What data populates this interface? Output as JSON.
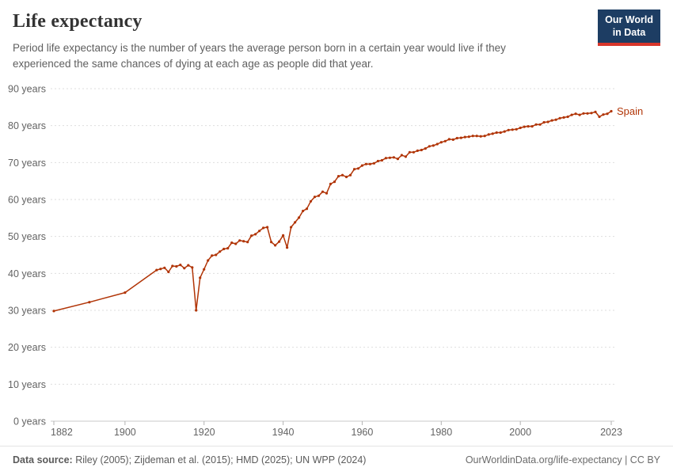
{
  "header": {
    "title": "Life expectancy",
    "subtitle": "Period life expectancy is the number of years the average person born in a certain year would live if they experienced the same chances of dying at each age as people did that year.",
    "logo": {
      "line1": "Our World",
      "line2": "in Data",
      "bg_color": "#1d3d63",
      "accent_color": "#d8352a"
    }
  },
  "chart_data": {
    "type": "line",
    "title": "Life expectancy",
    "xlabel": "",
    "ylabel": "",
    "xlim": [
      1882,
      2023
    ],
    "ylim": [
      0,
      90
    ],
    "xticks": [
      1882,
      1900,
      1920,
      1940,
      1960,
      1980,
      2000,
      2023
    ],
    "yticks": [
      0,
      10,
      20,
      30,
      40,
      50,
      60,
      70,
      80,
      90
    ],
    "ytick_suffix": " years",
    "grid": "horizontal-dashed",
    "legend_position": "end-of-line",
    "series": [
      {
        "name": "Spain",
        "color": "#b13507",
        "points": [
          [
            1882,
            29.8
          ],
          [
            1891,
            32.2
          ],
          [
            1900,
            34.8
          ],
          [
            1908,
            40.9
          ],
          [
            1909,
            41.2
          ],
          [
            1910,
            41.5
          ],
          [
            1911,
            40.4
          ],
          [
            1912,
            42.0
          ],
          [
            1913,
            41.9
          ],
          [
            1914,
            42.3
          ],
          [
            1915,
            41.4
          ],
          [
            1916,
            42.2
          ],
          [
            1917,
            41.6
          ],
          [
            1918,
            30.0
          ],
          [
            1919,
            38.8
          ],
          [
            1920,
            41.1
          ],
          [
            1921,
            43.5
          ],
          [
            1922,
            44.8
          ],
          [
            1923,
            45.0
          ],
          [
            1924,
            45.9
          ],
          [
            1925,
            46.6
          ],
          [
            1926,
            46.8
          ],
          [
            1927,
            48.3
          ],
          [
            1928,
            48.0
          ],
          [
            1929,
            48.9
          ],
          [
            1930,
            48.7
          ],
          [
            1931,
            48.5
          ],
          [
            1932,
            50.2
          ],
          [
            1933,
            50.6
          ],
          [
            1934,
            51.5
          ],
          [
            1935,
            52.3
          ],
          [
            1936,
            52.5
          ],
          [
            1937,
            48.5
          ],
          [
            1938,
            47.6
          ],
          [
            1939,
            48.6
          ],
          [
            1940,
            50.3
          ],
          [
            1941,
            47.0
          ],
          [
            1942,
            52.5
          ],
          [
            1943,
            53.8
          ],
          [
            1944,
            55.1
          ],
          [
            1945,
            56.9
          ],
          [
            1946,
            57.5
          ],
          [
            1947,
            59.5
          ],
          [
            1948,
            60.7
          ],
          [
            1949,
            61.0
          ],
          [
            1950,
            62.1
          ],
          [
            1951,
            61.7
          ],
          [
            1952,
            64.2
          ],
          [
            1953,
            64.8
          ],
          [
            1954,
            66.3
          ],
          [
            1955,
            66.6
          ],
          [
            1956,
            66.1
          ],
          [
            1957,
            66.6
          ],
          [
            1958,
            68.2
          ],
          [
            1959,
            68.4
          ],
          [
            1960,
            69.2
          ],
          [
            1961,
            69.6
          ],
          [
            1962,
            69.6
          ],
          [
            1963,
            69.8
          ],
          [
            1964,
            70.4
          ],
          [
            1965,
            70.6
          ],
          [
            1966,
            71.2
          ],
          [
            1967,
            71.3
          ],
          [
            1968,
            71.4
          ],
          [
            1969,
            71.0
          ],
          [
            1970,
            72.0
          ],
          [
            1971,
            71.6
          ],
          [
            1972,
            72.8
          ],
          [
            1973,
            72.8
          ],
          [
            1974,
            73.2
          ],
          [
            1975,
            73.4
          ],
          [
            1976,
            73.8
          ],
          [
            1977,
            74.4
          ],
          [
            1978,
            74.6
          ],
          [
            1979,
            75.0
          ],
          [
            1980,
            75.5
          ],
          [
            1981,
            75.8
          ],
          [
            1982,
            76.3
          ],
          [
            1983,
            76.2
          ],
          [
            1984,
            76.6
          ],
          [
            1985,
            76.7
          ],
          [
            1986,
            76.9
          ],
          [
            1987,
            77.0
          ],
          [
            1988,
            77.2
          ],
          [
            1989,
            77.2
          ],
          [
            1990,
            77.1
          ],
          [
            1991,
            77.2
          ],
          [
            1992,
            77.6
          ],
          [
            1993,
            77.8
          ],
          [
            1994,
            78.1
          ],
          [
            1995,
            78.1
          ],
          [
            1996,
            78.4
          ],
          [
            1997,
            78.8
          ],
          [
            1998,
            78.9
          ],
          [
            1999,
            79.0
          ],
          [
            2000,
            79.4
          ],
          [
            2001,
            79.7
          ],
          [
            2002,
            79.8
          ],
          [
            2003,
            79.8
          ],
          [
            2004,
            80.3
          ],
          [
            2005,
            80.3
          ],
          [
            2006,
            80.9
          ],
          [
            2007,
            81.0
          ],
          [
            2008,
            81.4
          ],
          [
            2009,
            81.6
          ],
          [
            2010,
            82.0
          ],
          [
            2011,
            82.2
          ],
          [
            2012,
            82.4
          ],
          [
            2013,
            82.9
          ],
          [
            2014,
            83.2
          ],
          [
            2015,
            82.9
          ],
          [
            2016,
            83.3
          ],
          [
            2017,
            83.3
          ],
          [
            2018,
            83.4
          ],
          [
            2019,
            83.7
          ],
          [
            2020,
            82.4
          ],
          [
            2021,
            83.0
          ],
          [
            2022,
            83.2
          ],
          [
            2023,
            83.9
          ]
        ]
      }
    ]
  },
  "footer": {
    "source_label": "Data source:",
    "source_text": " Riley (2005); Zijdeman et al. (2015); HMD (2025); UN WPP (2024)",
    "right_text": "OurWorldinData.org/life-expectancy | CC BY"
  }
}
